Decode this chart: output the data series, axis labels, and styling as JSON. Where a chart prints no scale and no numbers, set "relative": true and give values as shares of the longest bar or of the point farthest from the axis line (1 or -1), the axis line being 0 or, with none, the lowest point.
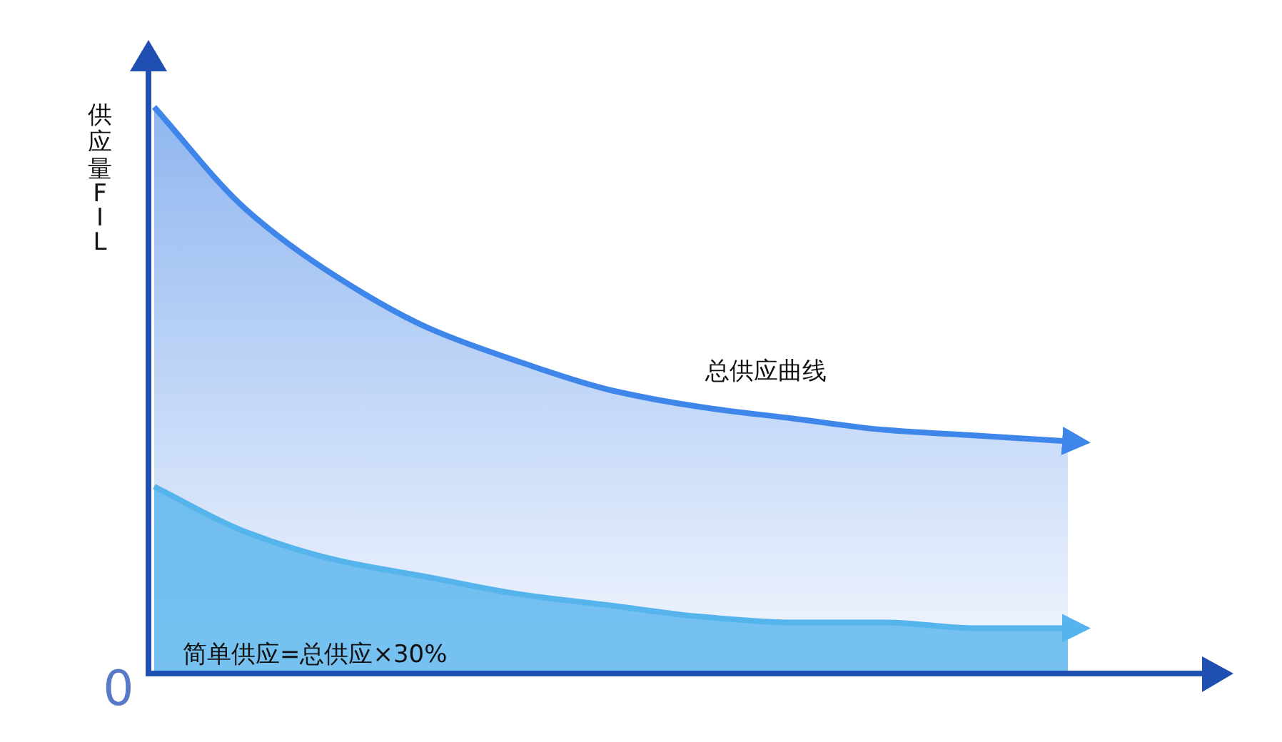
{
  "chart_data": {
    "type": "area",
    "relative": true,
    "ylabel": "供应量FIL",
    "annotations": [
      "0"
    ],
    "categories": [
      null,
      null,
      null,
      null,
      null,
      null,
      null,
      null,
      null,
      null,
      null
    ],
    "series": [
      {
        "name": "总供应曲线",
        "color": "#3f86ea",
        "values": [
          1,
          0.82,
          0.7,
          0.61,
          0.55,
          0.5,
          0.47,
          0.45,
          0.43,
          0.42,
          0.41
        ]
      },
      {
        "name": "简单供应=总供应×30%",
        "color": "#56b4ec",
        "values": [
          0.33,
          0.25,
          0.2,
          0.17,
          0.14,
          0.12,
          0.1,
          0.09,
          0.09,
          0.08,
          0.08
        ]
      }
    ]
  }
}
